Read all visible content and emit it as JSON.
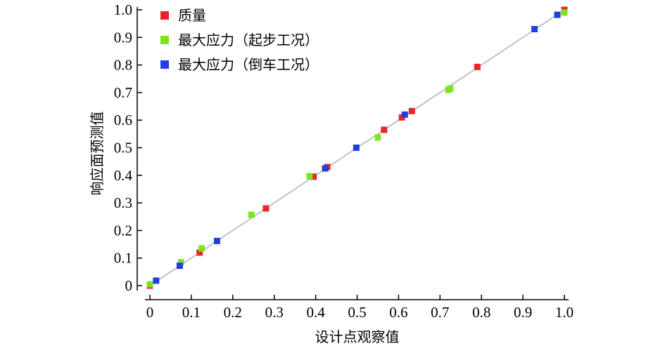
{
  "chart_data": {
    "type": "scatter",
    "title": "",
    "xlabel": "设计点观察值",
    "ylabel": "响应面预测值",
    "xlim": [
      0,
      1.0
    ],
    "ylim": [
      0,
      1.0
    ],
    "xticks": [
      "0",
      "0.1",
      "0.2",
      "0.3",
      "0.4",
      "0.5",
      "0.6",
      "0.7",
      "0.8",
      "0.9",
      "1.0"
    ],
    "yticks": [
      "0",
      "0.1",
      "0.2",
      "0.3",
      "0.4",
      "0.5",
      "0.6",
      "0.7",
      "0.8",
      "0.9",
      "1.0"
    ],
    "grid": false,
    "legend": "top-left",
    "diagonal_line": true,
    "series": [
      {
        "name": "质量",
        "color": "#e8262a",
        "points": [
          [
            0.0,
            0.0
          ],
          [
            0.12,
            0.12
          ],
          [
            0.28,
            0.28
          ],
          [
            0.395,
            0.395
          ],
          [
            0.428,
            0.43
          ],
          [
            0.565,
            0.565
          ],
          [
            0.608,
            0.61
          ],
          [
            0.632,
            0.633
          ],
          [
            0.79,
            0.793
          ],
          [
            1.0,
            1.0
          ]
        ]
      },
      {
        "name": "最大应力（起步工况）",
        "color": "#7de51f",
        "points": [
          [
            0.0,
            0.005
          ],
          [
            0.075,
            0.085
          ],
          [
            0.125,
            0.135
          ],
          [
            0.245,
            0.257
          ],
          [
            0.385,
            0.397
          ],
          [
            0.55,
            0.537
          ],
          [
            0.72,
            0.71
          ],
          [
            0.725,
            0.715
          ],
          [
            1.0,
            0.99
          ]
        ]
      },
      {
        "name": "最大应力（倒车工况）",
        "color": "#1f3fe0",
        "points": [
          [
            0.015,
            0.018
          ],
          [
            0.072,
            0.072
          ],
          [
            0.162,
            0.162
          ],
          [
            0.423,
            0.425
          ],
          [
            0.498,
            0.5
          ],
          [
            0.615,
            0.62
          ],
          [
            0.928,
            0.93
          ],
          [
            0.983,
            0.982
          ]
        ]
      }
    ]
  }
}
